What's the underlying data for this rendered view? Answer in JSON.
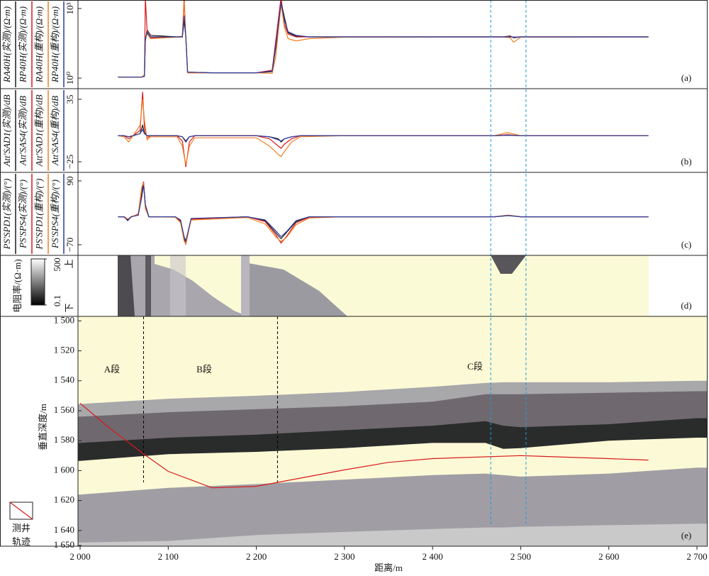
{
  "chart_data": [
    {
      "type": "line",
      "label": "(a)",
      "log_y": true,
      "xlim": [
        2000,
        2700
      ],
      "ylim": [
        0.35,
        2330
      ],
      "yticks": [
        {
          "value": 1,
          "label": "10⁰"
        },
        {
          "value": 1000,
          "label": "10³"
        }
      ],
      "x": [
        2043,
        2070,
        2073,
        2074,
        2076,
        2080,
        2110,
        2116,
        2118,
        2120,
        2122,
        2150,
        2200,
        2218,
        2222,
        2228,
        2232,
        2236,
        2245,
        2260,
        2300,
        2480,
        2488,
        2492,
        2500,
        2645
      ],
      "series": [
        {
          "name": "RA40H(实测)/(Ω·m)",
          "color": "#1a1a1a",
          "values": [
            1.1,
            1.1,
            1.2,
            40,
            120,
            70,
            60,
            60,
            300,
            60,
            1.8,
            1.7,
            1.7,
            1.9,
            20,
            2000,
            400,
            90,
            65,
            60,
            60,
            60,
            65,
            55,
            60,
            60
          ]
        },
        {
          "name": "RP40H(实测)/(Ω·m)",
          "color": "#d7191c",
          "values": [
            1.1,
            1.1,
            1.3,
            3000,
            100,
            55,
            60,
            62,
            3000,
            55,
            1.7,
            1.7,
            1.7,
            2.2,
            40,
            3000,
            200,
            80,
            60,
            60,
            60,
            60,
            62,
            58,
            60,
            60
          ]
        },
        {
          "name": "RA40H(重构)/(Ω·m)",
          "color": "#f07f22",
          "values": [
            1.1,
            1.1,
            1.4,
            60,
            80,
            50,
            58,
            60,
            2000,
            45,
            1.7,
            1.7,
            1.7,
            1.6,
            8,
            1500,
            150,
            50,
            40,
            50,
            58,
            60,
            55,
            35,
            58,
            60
          ]
        },
        {
          "name": "RP40H(重构)/(Ω·m)",
          "color": "#2b3b9c",
          "values": [
            1.1,
            1.1,
            1.2,
            50,
            90,
            60,
            60,
            60,
            500,
            60,
            1.8,
            1.7,
            1.7,
            2.0,
            25,
            1800,
            300,
            100,
            70,
            60,
            60,
            60,
            60,
            58,
            60,
            60
          ]
        }
      ]
    },
    {
      "type": "line",
      "label": "(b)",
      "xlim": [
        2000,
        2700
      ],
      "ylim": [
        -35.2,
        45.2
      ],
      "yticks": [
        {
          "value": -25,
          "label": "−25"
        },
        35
      ],
      "x": [
        2043,
        2050,
        2055,
        2060,
        2068,
        2071,
        2073,
        2076,
        2080,
        2110,
        2116,
        2120,
        2124,
        2130,
        2200,
        2215,
        2225,
        2228,
        2232,
        2240,
        2250,
        2300,
        2470,
        2485,
        2500,
        2645
      ],
      "series": [
        {
          "name": "Att′SAD1(实测)/dB",
          "color": "#1a1a1a",
          "values": [
            0,
            0,
            -1,
            0,
            2,
            10,
            3,
            0,
            0,
            0,
            -1,
            -6,
            -1,
            0,
            0,
            -1,
            -3,
            -6,
            -3,
            -1,
            0,
            0,
            0,
            0.5,
            0,
            0
          ]
        },
        {
          "name": "Att′SAS4(实测)/dB",
          "color": "#d7191c",
          "values": [
            0,
            0,
            -3,
            0,
            5,
            42,
            8,
            -2,
            0,
            0,
            -5,
            -30,
            -6,
            0,
            0,
            -3,
            -10,
            -12,
            -8,
            -3,
            0,
            0,
            0,
            1,
            0,
            0
          ]
        },
        {
          "name": "Att′SAD1(重构)/dB",
          "color": "#f07f22",
          "values": [
            0,
            -1,
            -6,
            0,
            10,
            35,
            15,
            -4,
            -1,
            -1,
            -10,
            -28,
            -10,
            -2,
            -2,
            -10,
            -18,
            -20,
            -15,
            -6,
            -1,
            0,
            0,
            3,
            0,
            0
          ]
        },
        {
          "name": "Att′SAS4(重构)/dB",
          "color": "#2b3b9c",
          "values": [
            0,
            0,
            -1,
            0,
            2,
            6,
            2,
            0,
            0,
            0,
            -1,
            -5,
            -1,
            0,
            0,
            -1,
            -4,
            -5,
            -3,
            -1,
            0,
            0,
            0,
            0.5,
            0,
            0
          ]
        }
      ]
    },
    {
      "type": "line",
      "label": "(c)",
      "xlim": [
        2000,
        2700
      ],
      "ylim": [
        -96.7,
        111.3
      ],
      "yticks": [
        {
          "value": -70,
          "label": "−70"
        },
        90
      ],
      "x": [
        2043,
        2050,
        2054,
        2058,
        2066,
        2070,
        2072,
        2074,
        2078,
        2108,
        2114,
        2118,
        2120,
        2126,
        2190,
        2210,
        2222,
        2228,
        2234,
        2245,
        2260,
        2300,
        2470,
        2486,
        2500,
        2645
      ],
      "series": [
        {
          "name": "PS′SPD1(实测)/(°)",
          "color": "#1a1a1a",
          "values": [
            0,
            0,
            -8,
            0,
            5,
            60,
            85,
            30,
            0,
            0,
            -10,
            -55,
            -65,
            -5,
            0,
            -10,
            -40,
            -55,
            -40,
            -12,
            0,
            0,
            0,
            3,
            0,
            0
          ]
        },
        {
          "name": "PS′SPS4(实测)/(°)",
          "color": "#d7191c",
          "values": [
            0,
            0,
            -6,
            0,
            5,
            70,
            88,
            25,
            0,
            0,
            -12,
            -60,
            -68,
            -6,
            0,
            -12,
            -45,
            -66,
            -50,
            -15,
            -1,
            0,
            0,
            4,
            0,
            0
          ]
        },
        {
          "name": "PS′SPD1(重构)/(°)",
          "color": "#f07f22",
          "values": [
            0,
            -1,
            -5,
            -1,
            8,
            75,
            85,
            20,
            0,
            -1,
            -15,
            -60,
            -66,
            -8,
            -2,
            -18,
            -50,
            -62,
            -52,
            -20,
            -3,
            0,
            0,
            4,
            0,
            0
          ]
        },
        {
          "name": "PS′SPS4(重构)/(°)",
          "color": "#2b3b9c",
          "values": [
            0,
            0,
            -10,
            0,
            4,
            50,
            80,
            30,
            0,
            0,
            -8,
            -50,
            -60,
            -4,
            0,
            -8,
            -35,
            -50,
            -38,
            -10,
            0,
            0,
            0,
            3,
            0,
            0
          ]
        }
      ]
    },
    {
      "type": "heatmap",
      "label": "(d)",
      "xlim": [
        2000,
        2700
      ],
      "top_label": "上",
      "bottom_label": "下",
      "colorbar": {
        "title": "电阻率/(Ω·m)",
        "clim": [
          0.1,
          500
        ],
        "log": true,
        "ticks": [
          500,
          0.1
        ],
        "colors": [
          "#ffffff",
          "#000000"
        ]
      }
    },
    {
      "type": "section",
      "label": "(e)",
      "xlabel": "距离/m",
      "ylabel": "垂直深度/m",
      "xlim": [
        2000,
        2700
      ],
      "ylim": [
        1497,
        1650.5
      ],
      "y_inverted": true,
      "xticks": [
        {
          "value": 2000,
          "label": "2 000"
        },
        {
          "value": 2100,
          "label": "2 100"
        },
        {
          "value": 2200,
          "label": "2 200"
        },
        {
          "value": 2300,
          "label": "2 300"
        },
        {
          "value": 2400,
          "label": "2 400"
        },
        {
          "value": 2500,
          "label": "2 500"
        },
        {
          "value": 2600,
          "label": "2 600"
        },
        {
          "value": 2700,
          "label": "2 700"
        }
      ],
      "yticks": [
        {
          "value": 1500,
          "label": "1 500"
        },
        {
          "value": 1520,
          "label": "1 520"
        },
        {
          "value": 1540,
          "label": "1 540"
        },
        {
          "value": 1560,
          "label": "1 560"
        },
        {
          "value": 1580,
          "label": "1 580"
        },
        {
          "value": 1600,
          "label": "1 600"
        },
        {
          "value": 1620,
          "label": "1 620"
        },
        {
          "value": 1640,
          "label": "1 640"
        },
        {
          "value": 1650,
          "label": "1 650"
        }
      ],
      "annotations": [
        "A段",
        "B段",
        "C段"
      ],
      "layer_x": [
        2000,
        2100,
        2200,
        2300,
        2400,
        2460,
        2480,
        2500,
        2600,
        2700
      ],
      "boundaries": [
        [
          1555.5,
          1552,
          1550,
          1547.5,
          1544,
          1541.5,
          1541,
          1541,
          1541,
          1540
        ],
        [
          1564,
          1561,
          1559,
          1557,
          1554,
          1549,
          1549,
          1549,
          1548,
          1547
        ],
        [
          1581.5,
          1578,
          1576,
          1573,
          1570,
          1567,
          1570,
          1571,
          1569,
          1565
        ],
        [
          1593.5,
          1589,
          1587.5,
          1585,
          1581.5,
          1581.5,
          1585.5,
          1585,
          1580,
          1578
        ],
        [
          1616,
          1611.5,
          1609,
          1606,
          1603,
          1602,
          1603,
          1604,
          1602,
          1598
        ],
        [
          1648,
          1647,
          1643,
          1641,
          1639,
          1638,
          1638,
          1637.5,
          1636.5,
          1635.5
        ]
      ],
      "layer_colors": [
        "#fcfad6",
        "#a8a7aa",
        "#6f696f",
        "#2a2b2b",
        "#fcfad6",
        "#a09ea4",
        "#c9c9c9"
      ],
      "marker_lines": [
        {
          "value": 2072,
          "color": "#000000",
          "span": "section"
        },
        {
          "value": 2224,
          "color": "#000000",
          "span": "section"
        },
        {
          "value": 2466,
          "color": "#1e9bd7",
          "span": "all"
        },
        {
          "value": 2506,
          "color": "#1e9bd7",
          "span": "all"
        }
      ],
      "series": [
        {
          "name": "测井轨迹",
          "color": "#d7191c",
          "x": [
            2000,
            2030,
            2070,
            2100,
            2150,
            2200,
            2250,
            2300,
            2350,
            2400,
            2500,
            2600,
            2645
          ],
          "values": [
            1555,
            1570,
            1588,
            1600.5,
            1611.5,
            1610.5,
            1605,
            1599.5,
            1594.5,
            1592,
            1590,
            1592,
            1593
          ]
        }
      ]
    }
  ]
}
